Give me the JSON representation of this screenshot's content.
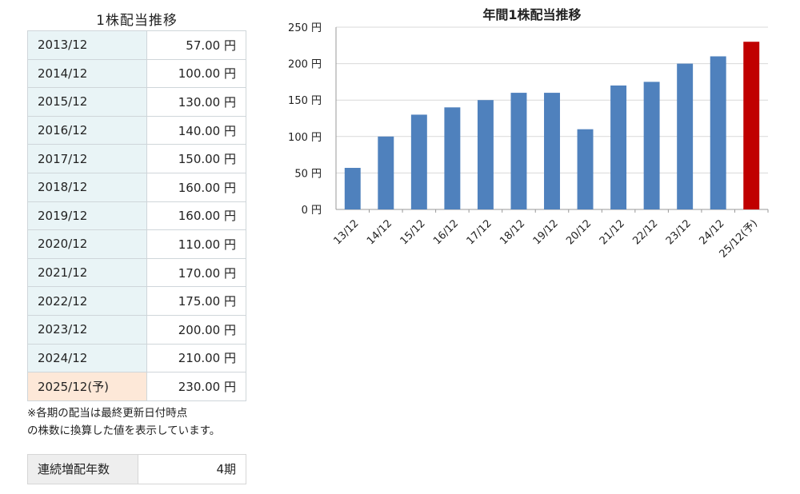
{
  "table": {
    "title": "1株配当推移",
    "rows": [
      {
        "period": "2013/12",
        "amount": "57.00 円"
      },
      {
        "period": "2014/12",
        "amount": "100.00 円"
      },
      {
        "period": "2015/12",
        "amount": "130.00 円"
      },
      {
        "period": "2016/12",
        "amount": "140.00 円"
      },
      {
        "period": "2017/12",
        "amount": "150.00 円"
      },
      {
        "period": "2018/12",
        "amount": "160.00 円"
      },
      {
        "period": "2019/12",
        "amount": "160.00 円"
      },
      {
        "period": "2020/12",
        "amount": "110.00 円"
      },
      {
        "period": "2021/12",
        "amount": "170.00 円"
      },
      {
        "period": "2022/12",
        "amount": "175.00 円"
      },
      {
        "period": "2023/12",
        "amount": "200.00 円"
      },
      {
        "period": "2024/12",
        "amount": "210.00 円"
      },
      {
        "period": "2025/12(予)",
        "amount": "230.00 円"
      }
    ],
    "note_line1": "※各期の配当は最終更新日付時点",
    "note_line2": "の株数に換算した値を表示しています。"
  },
  "streak": {
    "label": "連続増配年数",
    "value": "4期"
  },
  "colors": {
    "bar": "#4f81bd",
    "forecast_bar": "#c00000",
    "period_bg": "#e9f4f6",
    "forecast_bg": "#fde8d8"
  },
  "chart_data": {
    "type": "bar",
    "title": "年間1株配当推移",
    "categories": [
      "13/12",
      "14/12",
      "15/12",
      "16/12",
      "17/12",
      "18/12",
      "19/12",
      "20/12",
      "21/12",
      "22/12",
      "23/12",
      "24/12",
      "25/12(予)"
    ],
    "values": [
      57,
      100,
      130,
      140,
      150,
      160,
      160,
      110,
      170,
      175,
      200,
      210,
      230
    ],
    "forecast_index": 12,
    "ylim": [
      0,
      250
    ],
    "yticks": [
      0,
      50,
      100,
      150,
      200,
      250
    ],
    "ytick_labels": [
      "0 円",
      "50 円",
      "100 円",
      "150 円",
      "200 円",
      "250 円"
    ],
    "grid": true,
    "legend": "none"
  }
}
